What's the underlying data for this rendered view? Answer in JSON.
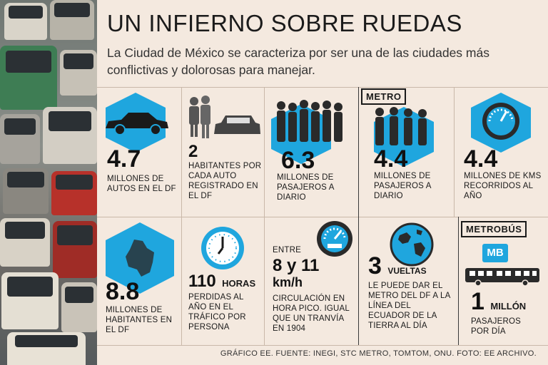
{
  "title": "UN INFIERNO SOBRE RUEDAS",
  "subtitle": "La Ciudad de México se caracteriza por ser una de las ciudades más conflictivas y dolorosas para manejar.",
  "sections": {
    "metro": "METRO",
    "metrobus": "METROBÚS"
  },
  "stats": [
    {
      "value": "4.7",
      "text": "MILLONES DE AUTOS EN EL DF",
      "icon": "car-icon"
    },
    {
      "value": "2",
      "text": "HABITANTES POR CADA AUTO REGISTRADO EN EL DF",
      "icon": "people-and-car-icon"
    },
    {
      "value": "6.3",
      "text": "MILLONES DE PASAJEROS A DIARIO",
      "icon": "crowd-icon"
    },
    {
      "value": "4.4",
      "text": "MILLONES DE PASAJEROS A DIARIO",
      "icon": "passengers-icon"
    },
    {
      "value": "4.4",
      "text": "MILLONES DE KMS RECORRIDOS AL AÑO",
      "icon": "speedometer-icon"
    },
    {
      "value": "8.8",
      "text": "MILLONES DE HABITANTES EN EL DF",
      "icon": "df-map-icon"
    },
    {
      "value": "110",
      "unit": "HORAS",
      "text": "PERDIDAS AL AÑO EN EL TRÁFICO POR PERSONA",
      "icon": "clock-icon"
    },
    {
      "prefix": "ENTRE",
      "value": "8 y 11",
      "unit": "km/h",
      "text": "CIRCULACIÓN EN HORA PICO. IGUAL QUE UN TRANVÍA EN 1904",
      "icon": "gauge-icon"
    },
    {
      "value": "3",
      "unit": "VUELTAS",
      "text": "LE PUEDE DAR EL METRO DEL DF A LA LÍNEA DEL ECUADOR DE LA TIERRA AL DÍA",
      "icon": "globe-icon"
    },
    {
      "value": "1",
      "unit": "MILLÓN",
      "text": "PASAJEROS POR DÍA",
      "icon": "metrobus-bus-icon",
      "logo": "MB"
    }
  ],
  "footer": "GRÁFICO EE. FUENTE: INEGI, STC METRO, TOMTOM, ONU. FOTO: EE ARCHIVO.",
  "colors": {
    "accent": "#1fa6de",
    "background": "#f4e9df",
    "text": "#1a1a1a"
  }
}
